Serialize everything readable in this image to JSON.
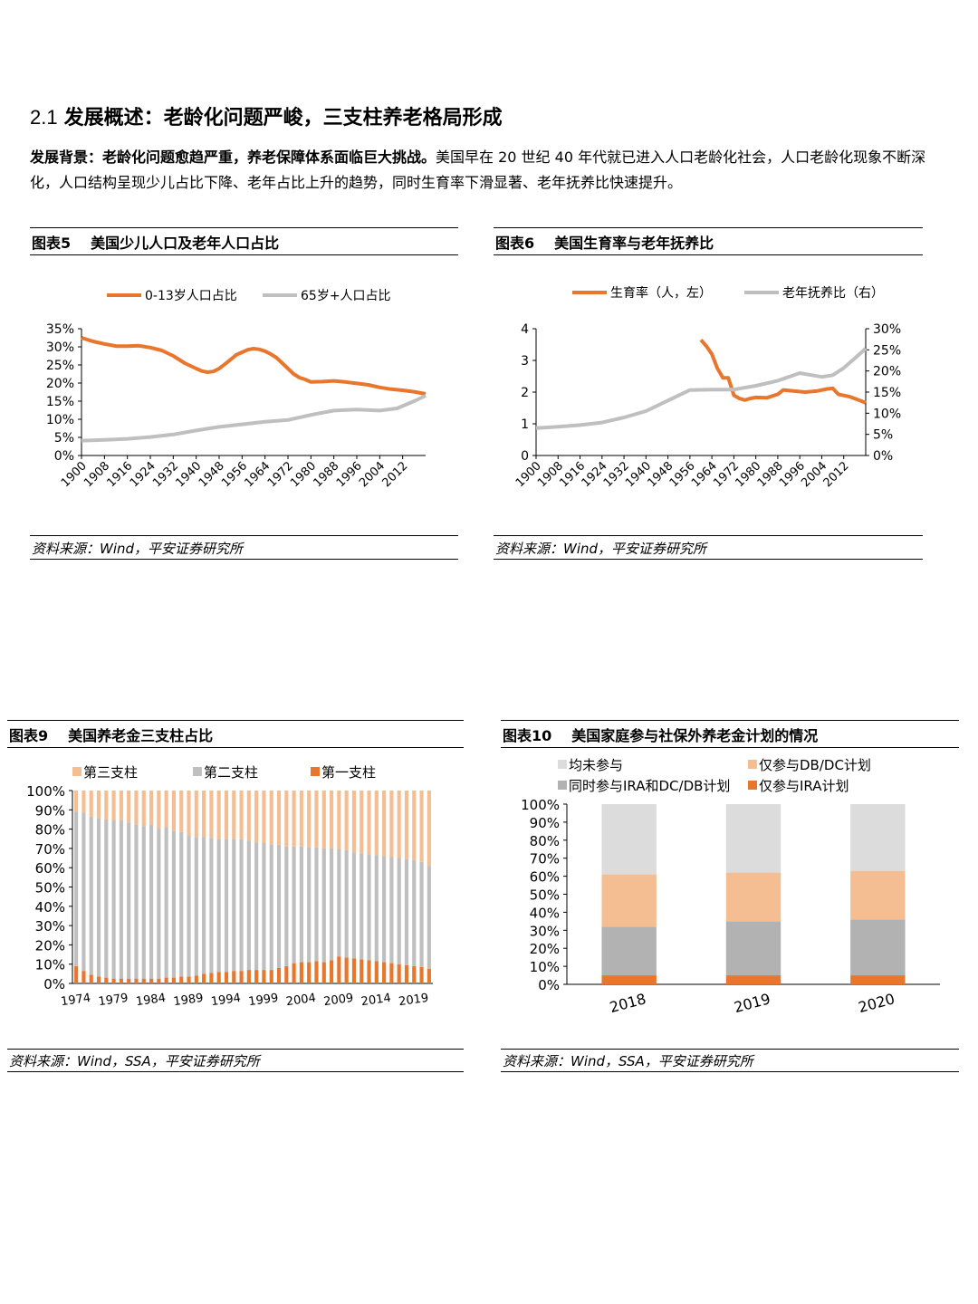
{
  "section": {
    "number": "2.1",
    "title": "发展概述：老龄化问题严峻，三支柱养老格局形成"
  },
  "intro": {
    "lead": "发展背景：老龄化问题愈趋严重，养老保障体系面临巨大挑战。",
    "body": "美国早在 20 世纪 40 年代就已进入人口老龄化社会，人口老龄化现象不断深化，人口结构呈现少儿占比下降、老年占比上升的趋势，同时生育率下滑显著、老年抚养比快速提升。"
  },
  "colors": {
    "orange": "#E8762C",
    "gray": "#BFBFBF",
    "light_orange": "#F4BE92",
    "light_gray": "#DCDCDC",
    "mid_gray": "#B2B2B2"
  },
  "fig5": {
    "label": "图表5",
    "title": "美国少儿人口及老年人口占比",
    "source": "资料来源：Wind，平安证券研究所",
    "chart_data": {
      "type": "line",
      "yticks": [
        "0%",
        "5%",
        "10%",
        "15%",
        "20%",
        "25%",
        "30%",
        "35%"
      ],
      "ylim": [
        0,
        35
      ],
      "xlim": [
        1900,
        2020
      ],
      "xticks": [
        "1900",
        "1908",
        "1916",
        "1924",
        "1932",
        "1940",
        "1948",
        "1956",
        "1964",
        "1972",
        "1980",
        "1988",
        "1996",
        "2004",
        "2012"
      ],
      "series": [
        {
          "name": "0-13岁人口占比",
          "color": "#E8762C",
          "x": [
            1900,
            1904,
            1908,
            1912,
            1916,
            1920,
            1924,
            1928,
            1932,
            1936,
            1940,
            1942,
            1944,
            1946,
            1948,
            1950,
            1952,
            1954,
            1956,
            1958,
            1960,
            1962,
            1964,
            1966,
            1968,
            1970,
            1972,
            1974,
            1976,
            1978,
            1980,
            1984,
            1988,
            1992,
            1996,
            2000,
            2004,
            2008,
            2012,
            2016,
            2020
          ],
          "y": [
            32.5,
            31.5,
            30.8,
            30.2,
            30.2,
            30.3,
            29.8,
            29,
            27.5,
            25.5,
            24,
            23.3,
            23,
            23.2,
            24,
            25.2,
            26.5,
            27.8,
            28.5,
            29.2,
            29.5,
            29.3,
            28.8,
            28,
            27,
            25.5,
            24,
            22.5,
            21.5,
            21,
            20.3,
            20.4,
            20.6,
            20.3,
            19.9,
            19.5,
            18.8,
            18.3,
            18,
            17.6,
            17
          ]
        },
        {
          "name": "65岁+人口占比",
          "color": "#BFBFBF",
          "x": [
            1900,
            1908,
            1916,
            1924,
            1932,
            1940,
            1948,
            1956,
            1964,
            1972,
            1980,
            1988,
            1996,
            2004,
            2010,
            2016,
            2020
          ],
          "y": [
            4.1,
            4.3,
            4.6,
            5.1,
            5.8,
            6.9,
            7.9,
            8.6,
            9.3,
            9.8,
            11.2,
            12.4,
            12.7,
            12.4,
            13,
            15,
            16.5
          ]
        }
      ]
    }
  },
  "fig6": {
    "label": "图表6",
    "title": "美国生育率与老年抚养比",
    "source": "资料来源：Wind，平安证券研究所",
    "chart_data": {
      "type": "line",
      "yticks_left": [
        "0",
        "1",
        "2",
        "3",
        "4"
      ],
      "ylim_left": [
        0,
        4
      ],
      "yticks_right": [
        "0%",
        "5%",
        "10%",
        "15%",
        "20%",
        "25%",
        "30%"
      ],
      "ylim_right": [
        0,
        30
      ],
      "xlim": [
        1900,
        2020
      ],
      "xticks": [
        "1900",
        "1908",
        "1916",
        "1924",
        "1932",
        "1940",
        "1948",
        "1956",
        "1964",
        "1972",
        "1980",
        "1988",
        "1996",
        "2004",
        "2012"
      ],
      "series": [
        {
          "name": "生育率（人，左）",
          "axis": "left",
          "color": "#E8762C",
          "x": [
            1960,
            1962,
            1964,
            1966,
            1968,
            1970,
            1972,
            1974,
            1976,
            1978,
            1980,
            1984,
            1988,
            1990,
            1994,
            1998,
            2002,
            2006,
            2008,
            2010,
            2014,
            2018,
            2020
          ],
          "y": [
            3.65,
            3.45,
            3.2,
            2.75,
            2.45,
            2.45,
            1.9,
            1.8,
            1.75,
            1.8,
            1.83,
            1.82,
            1.93,
            2.07,
            2.03,
            2.0,
            2.03,
            2.1,
            2.12,
            1.93,
            1.86,
            1.73,
            1.66
          ]
        },
        {
          "name": "老年抚养比（右）",
          "axis": "right",
          "color": "#BFBFBF",
          "x": [
            1900,
            1908,
            1916,
            1924,
            1932,
            1940,
            1948,
            1956,
            1964,
            1972,
            1980,
            1988,
            1996,
            2004,
            2008,
            2012,
            2016,
            2020
          ],
          "y": [
            6.5,
            6.8,
            7.2,
            7.8,
            9,
            10.5,
            13,
            15.5,
            15.6,
            15.6,
            16.5,
            17.7,
            19.5,
            18.6,
            19,
            20.7,
            23,
            25.3
          ]
        }
      ]
    }
  },
  "fig9": {
    "label": "图表9",
    "title": "美国养老金三支柱占比",
    "source": "资料来源：Wind，SSA，平安证券研究所",
    "chart_data": {
      "type": "bar",
      "stacked": true,
      "ylim": [
        0,
        100
      ],
      "yticks": [
        "0%",
        "10%",
        "20%",
        "30%",
        "40%",
        "50%",
        "60%",
        "70%",
        "80%",
        "90%",
        "100%"
      ],
      "categories": [
        1974,
        1975,
        1976,
        1977,
        1978,
        1979,
        1980,
        1981,
        1982,
        1983,
        1984,
        1985,
        1986,
        1987,
        1988,
        1989,
        1990,
        1991,
        1992,
        1993,
        1994,
        1995,
        1996,
        1997,
        1998,
        1999,
        2000,
        2001,
        2002,
        2003,
        2004,
        2005,
        2006,
        2007,
        2008,
        2009,
        2010,
        2011,
        2012,
        2013,
        2014,
        2015,
        2016,
        2017,
        2018,
        2019,
        2020,
        2021
      ],
      "xticks": [
        "1974",
        "1979",
        "1984",
        "1989",
        "1994",
        "1999",
        "2004",
        "2009",
        "2014",
        "2019"
      ],
      "series": [
        {
          "name": "第一支柱",
          "color": "#E8762C",
          "values": [
            9,
            6.5,
            4.5,
            3.5,
            3,
            2.5,
            2.5,
            2.5,
            2.5,
            2.5,
            2.5,
            2.5,
            3,
            3,
            3.5,
            3.5,
            4,
            5,
            5.5,
            6,
            6,
            6.5,
            6.5,
            7,
            7,
            7,
            7,
            8,
            9,
            10.5,
            11,
            11,
            11.5,
            11,
            12,
            14,
            13.5,
            13,
            12.5,
            12,
            11.5,
            11,
            10.5,
            10,
            9.5,
            9,
            8.5,
            7.5
          ]
        },
        {
          "name": "第二支柱",
          "color": "#BFBFBF",
          "values": [
            80,
            82,
            82,
            82,
            82,
            82,
            82,
            81,
            80,
            79,
            80,
            78,
            78,
            76,
            75,
            73,
            72,
            71,
            70,
            69,
            69,
            68.5,
            68.5,
            67,
            66,
            66,
            65,
            64,
            62,
            60.5,
            60,
            59.5,
            59,
            59,
            58,
            55.5,
            55.5,
            55,
            55,
            55,
            55,
            55,
            55,
            55,
            55,
            55,
            54.5,
            53.5
          ]
        },
        {
          "name": "第三支柱",
          "color": "#F4BE92",
          "values": [
            11,
            11.5,
            13.5,
            14.5,
            15,
            15.5,
            15.5,
            16.5,
            17.5,
            18.5,
            17.5,
            19.5,
            19,
            21,
            21.5,
            23.5,
            24,
            24,
            24.5,
            25,
            25,
            25,
            25,
            26,
            27,
            27,
            28,
            28,
            29,
            29,
            29,
            29.5,
            29.5,
            30,
            30,
            30.5,
            31,
            32,
            32.5,
            33,
            33.5,
            34,
            34.5,
            35,
            35.5,
            36,
            37,
            39
          ]
        }
      ],
      "legend_order": [
        "第三支柱",
        "第二支柱",
        "第一支柱"
      ]
    }
  },
  "fig10": {
    "label": "图表10",
    "title": "美国家庭参与社保外养老金计划的情况",
    "source": "资料来源：Wind，SSA，平安证券研究所",
    "chart_data": {
      "type": "bar",
      "stacked": true,
      "ylim": [
        0,
        100
      ],
      "yticks": [
        "0%",
        "10%",
        "20%",
        "30%",
        "40%",
        "50%",
        "60%",
        "70%",
        "80%",
        "90%",
        "100%"
      ],
      "categories": [
        "2018",
        "2019",
        "2020"
      ],
      "series": [
        {
          "name": "仅参与IRA计划",
          "color": "#E8762C",
          "values": [
            5,
            5,
            5
          ]
        },
        {
          "name": "同时参与IRA和DC/DB计划",
          "color": "#B2B2B2",
          "values": [
            27,
            30,
            31
          ]
        },
        {
          "name": "仅参与DB/DC计划",
          "color": "#F4BE92",
          "values": [
            29,
            27,
            27
          ]
        },
        {
          "name": "均未参与",
          "color": "#DCDCDC",
          "values": [
            39,
            38,
            37
          ]
        }
      ],
      "legend_order": [
        "均未参与",
        "仅参与DB/DC计划",
        "同时参与IRA和DC/DB计划",
        "仅参与IRA计划"
      ]
    }
  }
}
